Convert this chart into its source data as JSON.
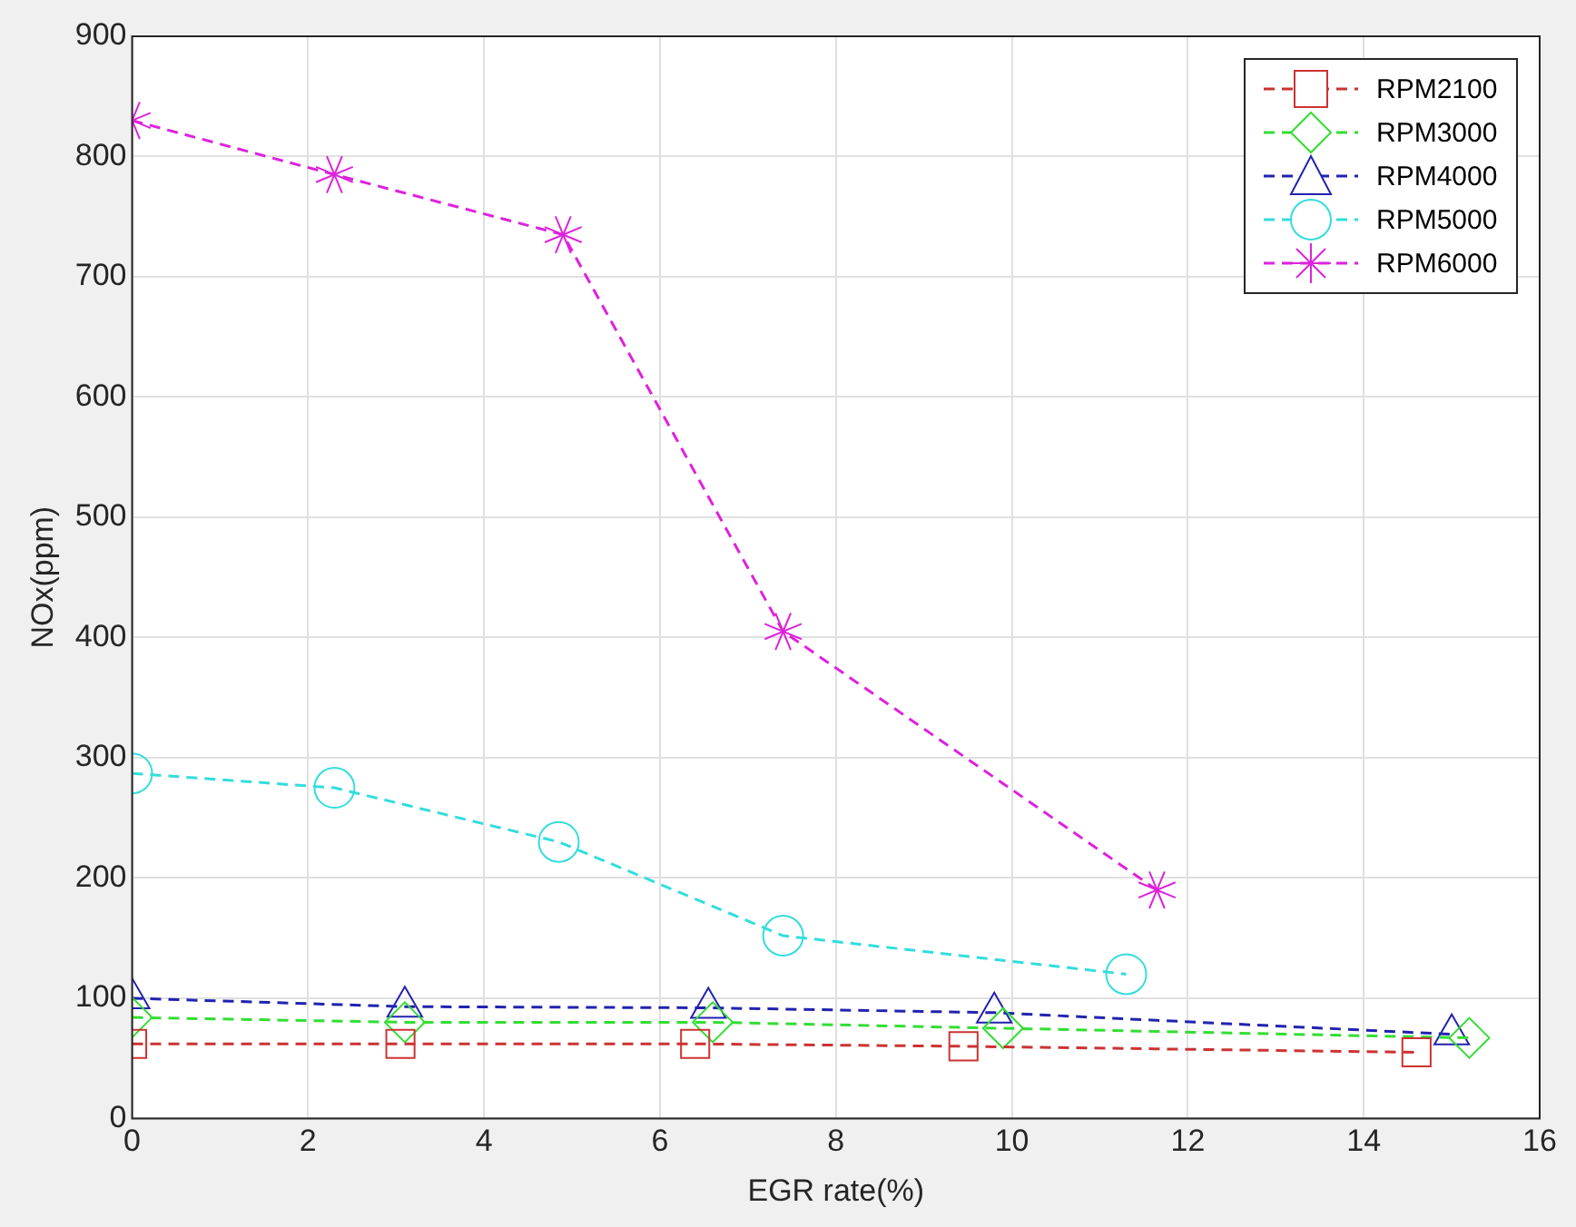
{
  "chart_data": {
    "type": "line",
    "xlabel": "EGR rate(%)",
    "ylabel": "NOx(ppm)",
    "xlim": [
      0,
      16
    ],
    "xticks": [
      0,
      2,
      4,
      6,
      8,
      10,
      12,
      14,
      16
    ],
    "ylim": [
      0,
      900
    ],
    "yticks": [
      0,
      100,
      200,
      300,
      400,
      500,
      600,
      700,
      800,
      900
    ],
    "grid": true,
    "legend": "top right",
    "line_style": "dashed",
    "series": [
      {
        "name": "RPM2100",
        "color": "#cc3333",
        "marker": "square",
        "x": [
          0,
          3.05,
          6.4,
          9.45,
          14.6
        ],
        "values": [
          62,
          62,
          62,
          60,
          55
        ]
      },
      {
        "name": "RPM3000",
        "color": "#33dd33",
        "marker": "diamond",
        "x": [
          0,
          3.1,
          6.6,
          9.9,
          15.2
        ],
        "values": [
          84,
          80,
          80,
          75,
          67
        ]
      },
      {
        "name": "RPM4000",
        "color": "#2222b0",
        "marker": "triangle",
        "x": [
          0,
          3.1,
          6.55,
          9.8,
          15
        ],
        "values": [
          100,
          93,
          92,
          88,
          70
        ]
      },
      {
        "name": "RPM5000",
        "color": "#33dddd",
        "marker": "circle",
        "x": [
          0,
          2.3,
          4.85,
          7.4,
          11.3
        ],
        "values": [
          287,
          275,
          230,
          152,
          120
        ]
      },
      {
        "name": "RPM6000",
        "color": "#dd22dd",
        "marker": "cross",
        "x": [
          0,
          2.3,
          4.9,
          7.4,
          11.65
        ],
        "values": [
          830,
          785,
          735,
          405,
          190
        ]
      }
    ]
  }
}
